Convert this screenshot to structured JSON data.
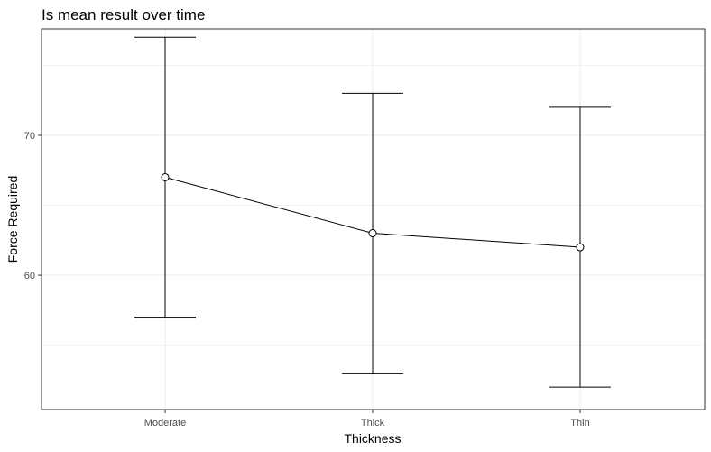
{
  "chart_data": {
    "type": "line",
    "title": "Is mean result over time",
    "xlabel": "Thickness",
    "ylabel": "Force Required",
    "categories": [
      "Moderate",
      "Thick",
      "Thin"
    ],
    "series": [
      {
        "values": [
          67,
          63,
          62
        ],
        "lower": [
          57,
          53,
          52
        ],
        "upper": [
          77,
          73,
          72
        ]
      }
    ],
    "y_ticks": [
      60,
      70
    ],
    "ylim": [
      50.4,
      77.6
    ],
    "grid": true,
    "legend": "none",
    "colors": {
      "line": "#000000",
      "point_fill": "#ffffff",
      "grid": "#ebebeb",
      "panel_border": "#333333"
    }
  }
}
